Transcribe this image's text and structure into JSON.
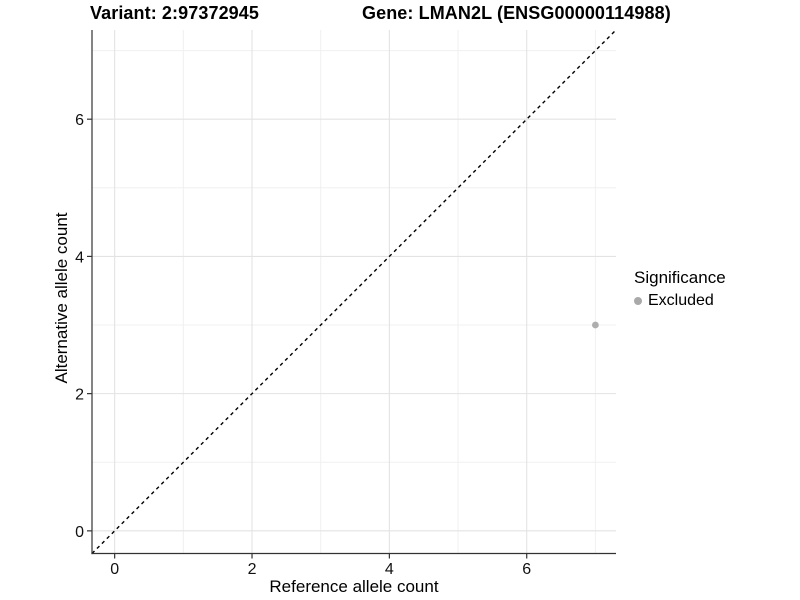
{
  "chart_data": {
    "type": "scatter",
    "titles": {
      "left": "Variant: 2:97372945",
      "right": "Gene: LMAN2L (ENSG00000114988)"
    },
    "xlabel": "Reference allele count",
    "ylabel": "Alternative allele count",
    "xlim": [
      -0.33,
      7.3
    ],
    "ylim": [
      -0.33,
      7.3
    ],
    "x_ticks": [
      0,
      2,
      4,
      6
    ],
    "y_ticks": [
      0,
      2,
      4,
      6
    ],
    "x_minor_ticks": [
      1,
      3,
      5,
      7
    ],
    "y_minor_ticks": [
      1,
      3,
      5,
      7
    ],
    "grid": {
      "on": true,
      "major_color": "#e3e3e3",
      "minor_color": "#f0f0f0"
    },
    "axis_color": "#333333",
    "reference_line": {
      "kind": "identity",
      "equation": "y = x",
      "style": "dashed",
      "color": "#000000"
    },
    "legend": {
      "title": "Significance",
      "position": "right",
      "entries": [
        {
          "label": "Excluded",
          "color": "#a9a9a9",
          "marker": "circle"
        }
      ]
    },
    "series": [
      {
        "name": "Excluded",
        "color": "#aeaeae",
        "marker_radius": 3.4,
        "points": [
          {
            "x": 7,
            "y": 3
          }
        ]
      }
    ]
  }
}
